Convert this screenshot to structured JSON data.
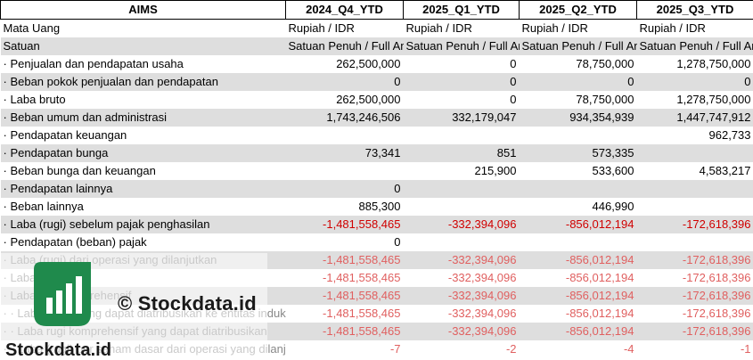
{
  "header": {
    "label": "AIMS",
    "periods": [
      "2024_Q4_YTD",
      "2025_Q1_YTD",
      "2025_Q2_YTD",
      "2025_Q3_YTD"
    ]
  },
  "rows": [
    {
      "label": "Mata Uang",
      "values": [
        "Rupiah / IDR",
        "Rupiah / IDR",
        "Rupiah / IDR",
        "Rupiah / IDR"
      ],
      "align": "left"
    },
    {
      "label": "Satuan",
      "values": [
        "Satuan Penuh / Full Am",
        "Satuan Penuh / Full Am",
        "Satuan Penuh / Full Am",
        "Satuan Penuh / Full Am"
      ],
      "align": "left"
    },
    {
      "label": "· Penjualan dan pendapatan usaha",
      "values": [
        "262,500,000",
        "0",
        "78,750,000",
        "1,278,750,000"
      ]
    },
    {
      "label": "· Beban pokok penjualan dan pendapatan",
      "values": [
        "0",
        "0",
        "0",
        "0"
      ]
    },
    {
      "label": "· Laba bruto",
      "values": [
        "262,500,000",
        "0",
        "78,750,000",
        "1,278,750,000"
      ]
    },
    {
      "label": "· Beban umum dan administrasi",
      "values": [
        "1,743,246,506",
        "332,179,047",
        "934,354,939",
        "1,447,747,912"
      ]
    },
    {
      "label": "· Pendapatan keuangan",
      "values": [
        "",
        "",
        "",
        "962,733"
      ]
    },
    {
      "label": "· Pendapatan bunga",
      "values": [
        "73,341",
        "851",
        "573,335",
        ""
      ]
    },
    {
      "label": "· Beban bunga dan keuangan",
      "values": [
        "",
        "215,900",
        "533,600",
        "4,583,217"
      ]
    },
    {
      "label": "· Pendapatan lainnya",
      "values": [
        "0",
        "",
        "",
        ""
      ]
    },
    {
      "label": "· Beban lainnya",
      "values": [
        "885,300",
        "",
        "446,990",
        ""
      ]
    },
    {
      "label": "· Laba (rugi) sebelum pajak penghasilan",
      "values": [
        "-1,481,558,465",
        "-332,394,096",
        "-856,012,194",
        "-172,618,396"
      ]
    },
    {
      "label": "· Pendapatan (beban) pajak",
      "values": [
        "0",
        "",
        "",
        ""
      ]
    },
    {
      "label": "· Laba (rugi) dari operasi yang dilanjutkan",
      "values": [
        "-1,481,558,465",
        "-332,394,096",
        "-856,012,194",
        "-172,618,396"
      ]
    },
    {
      "label": "· Laba (rugi)",
      "values": [
        "-1,481,558,465",
        "-332,394,096",
        "-856,012,194",
        "-172,618,396"
      ]
    },
    {
      "label": "· Laba rugi komprehensif",
      "values": [
        "-1,481,558,465",
        "-332,394,096",
        "-856,012,194",
        "-172,618,396"
      ]
    },
    {
      "label": "· · Laba (rugi) yang dapat diatribusikan ke entitas induk",
      "values": [
        "-1,481,558,465",
        "-332,394,096",
        "-856,012,194",
        "-172,618,396"
      ]
    },
    {
      "label": "· · Laba rugi komprehensif yang dapat diatribusikan",
      "values": [
        "-1,481,558,465",
        "-332,394,096",
        "-856,012,194",
        "-172,618,396"
      ]
    },
    {
      "label": "· · Laba (rugi) per saham dasar dari operasi yang dilanjutkan",
      "values": [
        "-7",
        "-2",
        "-4",
        "-1"
      ]
    }
  ],
  "watermark": {
    "brand_right": "© Stockdata.id",
    "brand_bottom": "Stockdata.id"
  },
  "colors": {
    "shade": "#dedede",
    "negative": "#d00000"
  }
}
